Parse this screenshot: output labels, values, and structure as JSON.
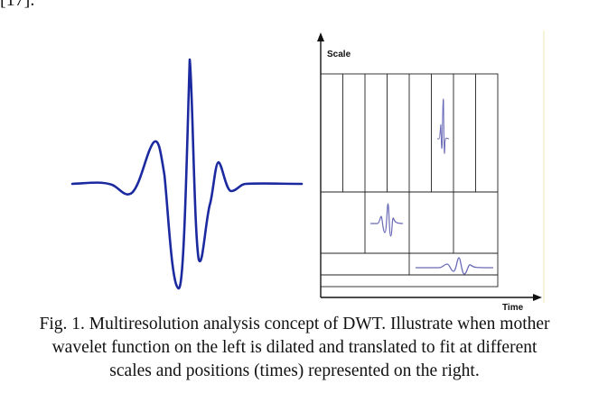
{
  "previous_text_fragment": "[17].",
  "figure": {
    "time_frequency_plot": {
      "y_axis_label": "Scale",
      "x_axis_label": "Time"
    },
    "colors": {
      "wavelet_stroke": "#1c2aa0",
      "tile_wavelet_stroke": "#6a6ab8",
      "grid_line": "#222222",
      "right_border": "#f3eab0"
    }
  },
  "caption": {
    "line1": "Fig. 1. Multiresolution analysis concept of DWT. Illustrate when mother",
    "line2": "wavelet function on the left is dilated and translated to fit at different",
    "line3": "scales and positions (times) represented on the right."
  }
}
